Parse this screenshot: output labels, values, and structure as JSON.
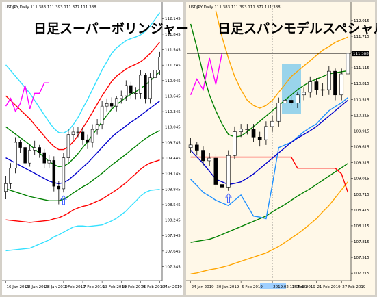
{
  "chart_data": [
    {
      "type": "candlestick",
      "header": "USDJPY,Daily 111.383 111.393 111.377 111.388",
      "title": "日足スーパーボリンジャー",
      "background": "#ffffff",
      "bull_color": "#ffffff",
      "bear_color": "#000000",
      "categories": [
        "16 Jan 2019",
        null,
        null,
        null,
        "22 Jan 2019",
        null,
        null,
        null,
        "28 Jan 2019",
        null,
        null,
        null,
        "1 Feb 2019",
        null,
        null,
        null,
        "7 Feb 2019",
        null,
        null,
        null,
        "13 Feb 2019",
        null,
        null,
        null,
        "19 Feb 2019",
        null,
        null,
        null,
        "25 Feb 2019",
        null,
        null,
        null,
        "1 Mar 2019"
      ],
      "open": [
        108.8,
        108.95,
        109.25,
        109.75,
        109.65,
        109.35,
        109.6,
        109.65,
        109.55,
        109.35,
        109.4,
        108.9,
        108.85,
        109.45,
        109.9,
        109.95,
        109.95,
        109.8,
        109.75,
        110.0,
        110.1,
        110.45,
        110.5,
        110.45,
        110.6,
        110.65,
        110.85,
        110.7,
        110.7,
        111.05,
        110.6,
        111.0,
        111.15
      ],
      "high": [
        109.1,
        109.35,
        109.85,
        109.8,
        109.7,
        109.7,
        109.78,
        109.7,
        109.62,
        109.5,
        109.48,
        109.0,
        109.55,
        110.0,
        110.05,
        110.05,
        110.05,
        109.9,
        110.1,
        110.2,
        110.55,
        110.6,
        110.62,
        110.65,
        110.75,
        110.95,
        110.92,
        110.82,
        111.15,
        111.1,
        111.1,
        111.25,
        111.5
      ],
      "low": [
        108.65,
        108.85,
        109.15,
        109.55,
        109.25,
        109.28,
        109.5,
        109.45,
        109.25,
        109.25,
        108.8,
        108.55,
        108.78,
        109.38,
        109.8,
        109.85,
        109.7,
        109.62,
        109.65,
        109.9,
        110.0,
        110.35,
        110.4,
        110.35,
        110.5,
        110.55,
        110.6,
        110.58,
        110.6,
        110.5,
        110.5,
        110.9,
        111.05
      ],
      "close": [
        108.95,
        109.25,
        109.75,
        109.65,
        109.35,
        109.6,
        109.65,
        109.55,
        109.35,
        109.4,
        108.9,
        108.85,
        109.45,
        109.9,
        109.95,
        109.95,
        109.8,
        109.75,
        110.0,
        110.1,
        110.45,
        110.5,
        110.45,
        110.6,
        110.65,
        110.85,
        110.7,
        110.7,
        111.05,
        110.6,
        111.0,
        111.15,
        111.4
      ],
      "lines": [
        {
          "color": "#33e0ff",
          "values": [
            111.25,
            111.14,
            111.03,
            110.92,
            110.81,
            110.7,
            110.56,
            110.42,
            110.28,
            110.14,
            110.02,
            109.94,
            109.93,
            109.98,
            110.09,
            110.23,
            110.41,
            110.58,
            110.77,
            110.96,
            111.15,
            111.31,
            111.47,
            111.58,
            111.65,
            111.72,
            111.76,
            111.79,
            111.83,
            111.9,
            112.0,
            112.13,
            112.26
          ]
        },
        {
          "color": "#33e0ff",
          "values": [
            107.65,
            107.66,
            107.67,
            107.68,
            107.69,
            107.7,
            107.74,
            107.78,
            107.82,
            107.86,
            107.92,
            107.96,
            108.01,
            108.06,
            108.11,
            108.13,
            108.13,
            108.12,
            108.13,
            108.14,
            108.15,
            108.19,
            108.23,
            108.28,
            108.35,
            108.42,
            108.52,
            108.61,
            108.71,
            108.78,
            108.82,
            108.83,
            108.84
          ]
        },
        {
          "color": "#ff0000",
          "values": [
            110.65,
            110.56,
            110.47,
            110.38,
            110.29,
            110.2,
            110.09,
            109.98,
            109.87,
            109.76,
            109.67,
            109.61,
            109.61,
            109.66,
            109.76,
            109.88,
            110.03,
            110.17,
            110.33,
            110.49,
            110.65,
            110.79,
            110.93,
            111.03,
            111.1,
            111.17,
            111.22,
            111.26,
            111.31,
            111.38,
            111.47,
            111.58,
            111.69
          ]
        },
        {
          "color": "#ff0000",
          "values": [
            108.25,
            108.24,
            108.23,
            108.22,
            108.21,
            108.2,
            108.21,
            108.22,
            108.23,
            108.24,
            108.27,
            108.29,
            108.33,
            108.38,
            108.44,
            108.48,
            108.51,
            108.53,
            108.57,
            108.61,
            108.65,
            108.71,
            108.77,
            108.83,
            108.9,
            108.97,
            109.06,
            109.14,
            109.23,
            109.3,
            109.35,
            109.38,
            109.41
          ]
        },
        {
          "color": "#008000",
          "values": [
            110.05,
            109.98,
            109.91,
            109.84,
            109.77,
            109.7,
            109.62,
            109.54,
            109.46,
            109.38,
            109.32,
            109.28,
            109.29,
            109.34,
            109.43,
            109.53,
            109.65,
            109.76,
            109.89,
            110.02,
            110.15,
            110.27,
            110.39,
            110.48,
            110.55,
            110.62,
            110.68,
            110.73,
            110.79,
            110.86,
            110.94,
            111.03,
            111.12
          ]
        },
        {
          "color": "#008000",
          "values": [
            108.85,
            108.82,
            108.79,
            108.76,
            108.73,
            108.7,
            108.68,
            108.66,
            108.64,
            108.62,
            108.62,
            108.62,
            108.65,
            108.7,
            108.77,
            108.83,
            108.89,
            108.94,
            109.01,
            109.08,
            109.15,
            109.23,
            109.31,
            109.38,
            109.45,
            109.52,
            109.6,
            109.67,
            109.75,
            109.82,
            109.88,
            109.93,
            109.98
          ]
        },
        {
          "color": "#0000cd",
          "values": [
            109.45,
            109.4,
            109.35,
            109.3,
            109.25,
            109.2,
            109.15,
            109.1,
            109.05,
            109.0,
            108.97,
            108.95,
            108.97,
            109.02,
            109.1,
            109.18,
            109.27,
            109.35,
            109.45,
            109.55,
            109.65,
            109.75,
            109.85,
            109.93,
            110.0,
            110.07,
            110.14,
            110.2,
            110.27,
            110.34,
            110.41,
            110.48,
            110.55
          ]
        },
        {
          "color": "#ff00ff",
          "values": [
            110.45,
            110.6,
            110.35,
            110.5,
            110.85,
            110.4,
            110.7,
            110.7,
            110.9,
            110.9,
            null,
            null,
            null,
            null,
            null,
            null,
            null,
            null,
            null,
            null,
            null,
            null,
            null,
            null,
            null,
            null,
            null,
            null,
            null,
            null,
            null,
            null,
            null
          ]
        }
      ],
      "ylim": [
        107.1,
        112.4
      ],
      "yticks": [
        107.345,
        107.645,
        107.945,
        108.245,
        108.545,
        108.845,
        109.145,
        109.445,
        109.745,
        110.045,
        110.345,
        110.645,
        110.945,
        111.245,
        111.545,
        111.845,
        112.145
      ]
    },
    {
      "type": "candlestick",
      "header": "USDJPY,Daily 111.383 111.393 111.377 111.388",
      "title": "日足スパンモデルスペシャル",
      "background": "#fff8e8",
      "bull_color": "#ffffff",
      "bear_color": "#000000",
      "categories": [
        "24 Jan 2019",
        null,
        null,
        null,
        "30 Jan 2019",
        null,
        null,
        null,
        "5 Feb 2019",
        null,
        null,
        null,
        null,
        "2019.02.12 00:00",
        null,
        null,
        "15 Feb 2019",
        null,
        null,
        null,
        "21 Feb 2019",
        null,
        null,
        null,
        "27 Feb 2019",
        null
      ],
      "open": [
        109.6,
        109.65,
        109.55,
        109.35,
        109.4,
        108.9,
        108.85,
        109.45,
        109.9,
        109.95,
        109.95,
        109.8,
        109.75,
        110.0,
        110.1,
        110.45,
        110.5,
        110.45,
        110.6,
        110.65,
        110.85,
        110.7,
        110.7,
        111.05,
        110.6,
        111.0
      ],
      "high": [
        109.78,
        109.7,
        109.62,
        109.5,
        109.48,
        109.0,
        109.55,
        110.0,
        110.05,
        110.05,
        110.05,
        109.9,
        110.1,
        110.2,
        110.55,
        110.6,
        110.62,
        110.65,
        110.75,
        110.95,
        110.92,
        110.82,
        111.15,
        111.1,
        111.1,
        111.45
      ],
      "low": [
        109.5,
        109.45,
        109.25,
        109.25,
        108.8,
        108.55,
        108.78,
        109.38,
        109.8,
        109.85,
        109.7,
        109.62,
        109.65,
        109.9,
        110.0,
        110.35,
        110.4,
        110.35,
        110.5,
        110.55,
        110.6,
        110.58,
        110.6,
        110.5,
        110.5,
        110.9
      ],
      "close": [
        109.65,
        109.55,
        109.35,
        109.4,
        108.9,
        108.85,
        109.45,
        109.9,
        109.95,
        109.95,
        109.8,
        109.75,
        110.0,
        110.1,
        110.45,
        110.5,
        110.45,
        110.6,
        110.65,
        110.85,
        110.7,
        110.7,
        111.05,
        110.6,
        111.0,
        111.39
      ],
      "lines": [
        {
          "color": "#ffa500",
          "values": [
            null,
            null,
            null,
            null,
            112.2,
            111.7,
            111.3,
            110.95,
            110.7,
            110.5,
            110.4,
            110.35,
            110.4,
            110.5,
            110.65,
            110.8,
            110.95,
            111.05,
            111.15,
            111.25,
            111.35,
            111.45,
            111.52,
            111.6,
            111.65,
            111.7
          ]
        },
        {
          "color": "#ffa500",
          "values": [
            107.2,
            107.22,
            107.25,
            107.28,
            107.3,
            107.33,
            107.36,
            107.4,
            107.44,
            107.48,
            107.52,
            107.56,
            107.6,
            107.66,
            107.72,
            107.8,
            107.88,
            107.96,
            108.05,
            108.15,
            108.25,
            108.38,
            108.5,
            108.65,
            108.8,
            108.95
          ]
        },
        {
          "color": "#008000",
          "values": [
            111.95,
            111.5,
            111.0,
            110.6,
            110.3,
            110.05,
            109.85,
            109.8,
            109.82,
            109.9,
            110.0,
            110.1,
            110.2,
            110.3,
            110.4,
            110.5,
            110.6,
            110.7,
            110.78,
            110.85,
            110.9,
            110.95,
            111.0,
            111.02,
            111.04,
            111.06
          ]
        },
        {
          "color": "#008000",
          "values": [
            107.8,
            107.82,
            107.84,
            107.86,
            107.9,
            107.95,
            108.0,
            108.05,
            108.1,
            108.15,
            108.2,
            108.25,
            108.3,
            108.38,
            108.45,
            108.52,
            108.6,
            108.68,
            108.75,
            108.82,
            108.9,
            108.98,
            109.06,
            109.14,
            109.22,
            109.3
          ]
        },
        {
          "color": "#ff0000",
          "values": [
            109.42,
            109.42,
            109.42,
            109.42,
            109.42,
            109.42,
            109.42,
            109.42,
            109.42,
            109.42,
            109.42,
            109.42,
            109.42,
            109.42,
            109.42,
            109.42,
            109.42,
            109.21,
            109.21,
            109.21,
            109.21,
            109.21,
            109.21,
            109.21,
            109.1,
            108.75
          ]
        },
        {
          "color": "#1e90ff",
          "values": [
            109.0,
            108.88,
            108.75,
            108.68,
            108.6,
            108.55,
            108.5,
            108.6,
            108.7,
            108.5,
            108.3,
            108.28,
            108.25,
            108.9,
            109.6,
            109.65,
            109.7,
            109.8,
            109.9,
            109.98,
            110.05,
            110.18,
            110.3,
            110.38,
            110.45,
            110.55
          ]
        },
        {
          "color": "#0000cd",
          "values": [
            109.55,
            109.42,
            109.3,
            109.15,
            109.0,
            108.95,
            108.9,
            108.92,
            108.95,
            109.02,
            109.1,
            109.2,
            109.3,
            109.4,
            109.5,
            109.6,
            109.7,
            109.78,
            109.85,
            109.92,
            110.0,
            110.1,
            110.2,
            110.3,
            110.4,
            110.5
          ]
        },
        {
          "color": "#ff00ff",
          "values": [
            110.6,
            110.9,
            110.7,
            111.3,
            110.8,
            111.4,
            null,
            null,
            null,
            null,
            null,
            null,
            null,
            null,
            null,
            null,
            null,
            null,
            null,
            null,
            null,
            null,
            null,
            null,
            null,
            null
          ]
        }
      ],
      "price": 111.388,
      "ylim": [
        107.1,
        112.3
      ],
      "yticks": [
        107.215,
        107.515,
        107.815,
        108.115,
        108.415,
        108.715,
        109.015,
        109.315,
        109.615,
        109.915,
        110.215,
        110.515,
        110.815,
        111.115,
        111.415,
        111.715,
        112.015
      ]
    }
  ]
}
